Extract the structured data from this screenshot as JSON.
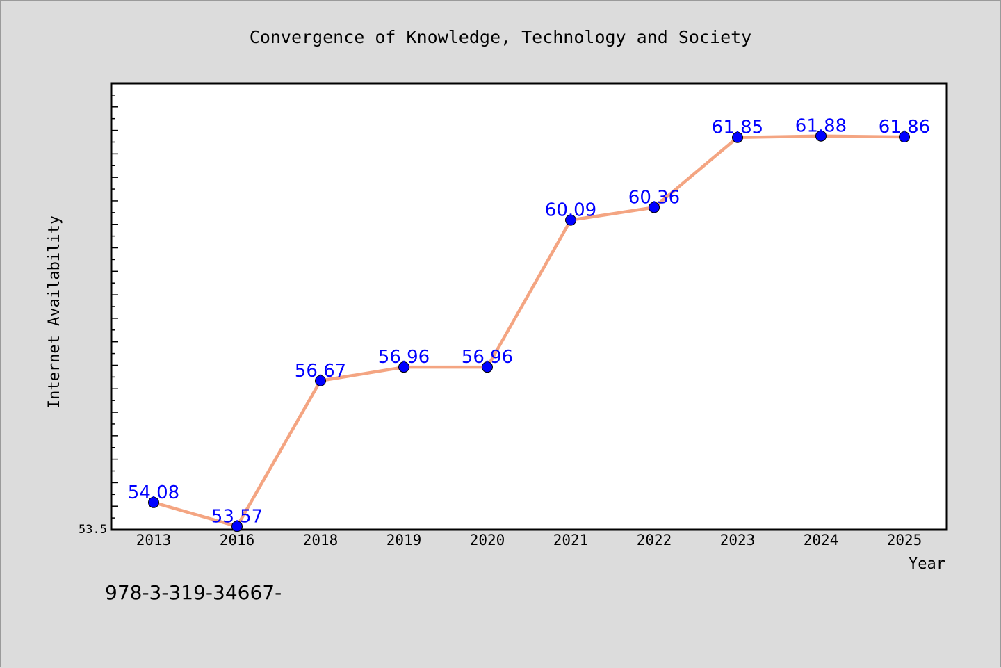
{
  "chart_data": {
    "type": "line",
    "title": "Convergence of Knowledge, Technology and Society",
    "xlabel": "Year",
    "ylabel": "Internet Availability",
    "categories": [
      "2013",
      "2016",
      "2018",
      "2019",
      "2020",
      "2021",
      "2022",
      "2023",
      "2024",
      "2025"
    ],
    "series": [
      {
        "values": [
          54.08,
          53.57,
          56.67,
          56.96,
          56.96,
          60.09,
          60.36,
          61.85,
          61.88,
          61.86
        ],
        "labels": [
          "54.08",
          "53.57",
          "56.67",
          "56.96",
          "56.96",
          "60.09",
          "60.36",
          "61.85",
          "61.88",
          "61.86"
        ]
      }
    ],
    "ylim": [
      53.5,
      63
    ],
    "y_tick_label": "53.5",
    "grid": false,
    "legend": "none",
    "colors": {
      "line": "#f4a582",
      "marker": "#0000ff",
      "data_label": "#0000ff",
      "background": "#dcdcdc",
      "plot_background": "#ffffff"
    }
  },
  "footnote": "978-3-319-34667-"
}
